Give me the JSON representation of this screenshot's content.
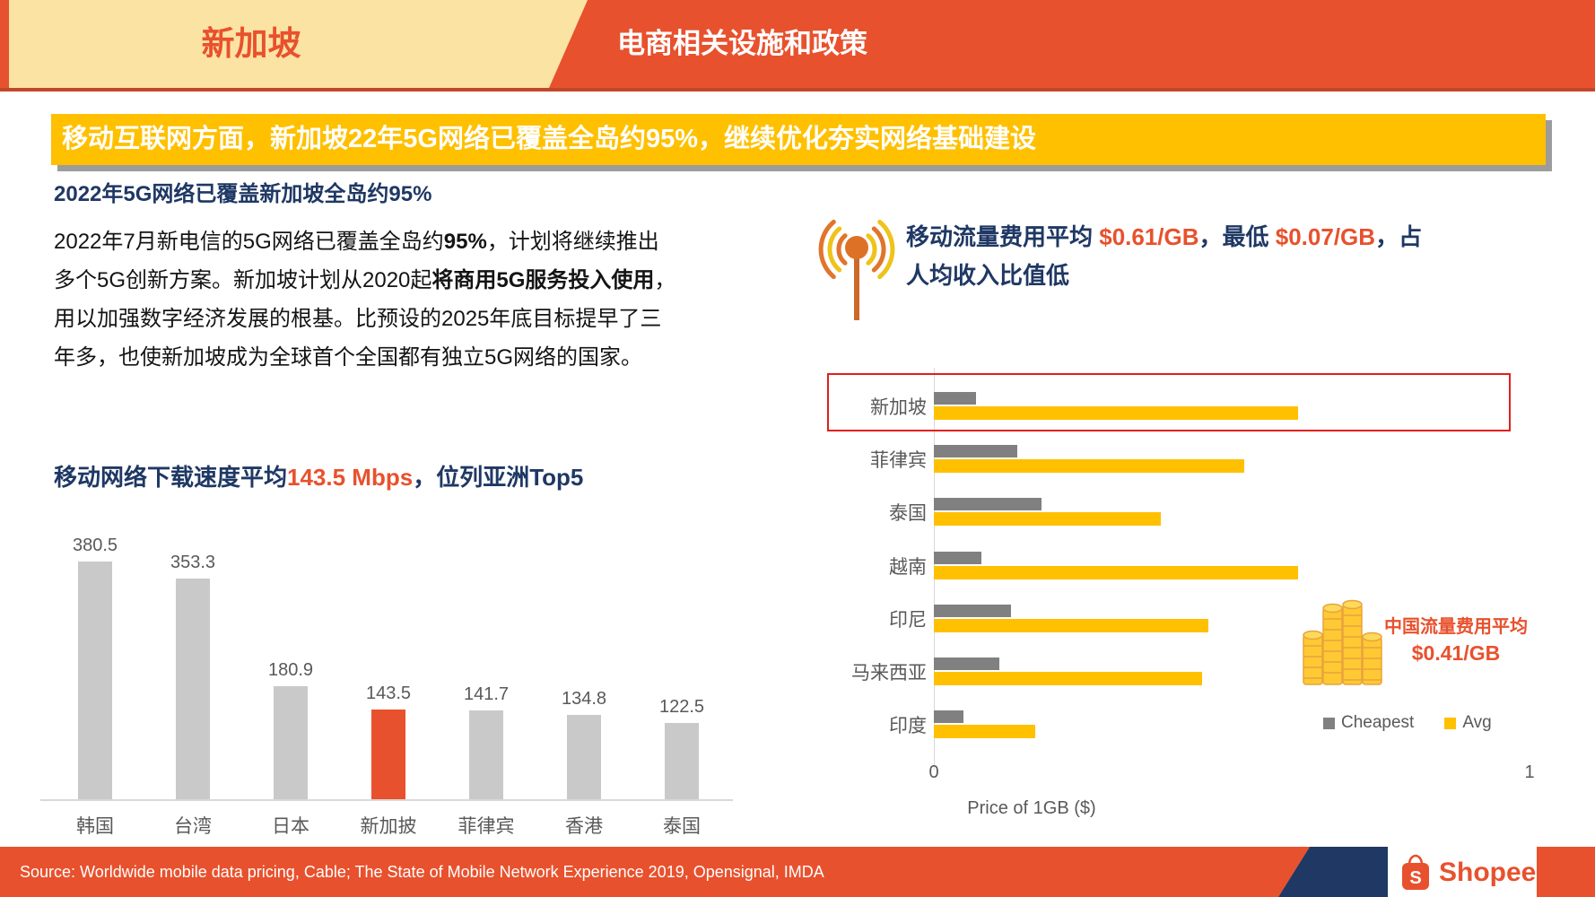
{
  "header": {
    "region_label": "新加坡",
    "page_title": "电商相关设施和政策"
  },
  "banner": {
    "text": "移动互联网方面，新加坡22年5G网络已覆盖全岛约95%，继续优化夯实网络基础建设"
  },
  "left": {
    "section_heading": "2022年5G网络已覆盖新加坡全岛约95%",
    "paragraph": [
      {
        "t": "2022年7月新电信的5G网络已覆盖全岛约"
      },
      {
        "t": "95%",
        "b": true
      },
      {
        "t": "，计划将继续推出多个5G创新方案。新加坡计划从2020起"
      },
      {
        "t": "将商用5G服务投入使用",
        "b": true
      },
      {
        "t": "，用以加强数字经济发展的根基。比预设的2025年底目标提早了三年多，也使新加坡成为全球首个全国都有独立5G网络的国家。"
      }
    ],
    "chart_heading": [
      {
        "t": "移动网络下载速度平均",
        "cls": "navy"
      },
      {
        "t": "143.5 Mbps",
        "cls": "accent"
      },
      {
        "t": "，位列亚洲Top5",
        "cls": "navy"
      }
    ]
  },
  "right": {
    "heading_line1": [
      {
        "t": "移动流量费用平均 ",
        "cls": "navy"
      },
      {
        "t": "$0.61/GB",
        "cls": "accent"
      },
      {
        "t": "，最低 ",
        "cls": "navy"
      },
      {
        "t": "$0.07/GB",
        "cls": "accent"
      },
      {
        "t": "，占",
        "cls": "navy"
      }
    ],
    "heading_line2": [
      {
        "t": "人均收入比值低",
        "cls": "navy"
      }
    ]
  },
  "chart_data": [
    {
      "type": "bar",
      "title": "移动网络下载速度平均143.5 Mbps，位列亚洲Top5",
      "categories": [
        "韩国",
        "台湾",
        "日本",
        "新加披",
        "菲律宾",
        "香港",
        "泰国"
      ],
      "values": [
        380.5,
        353.3,
        180.9,
        143.5,
        141.7,
        134.8,
        122.5
      ],
      "unit": "Mbps",
      "ylim": [
        0,
        400
      ],
      "highlight_index": 3,
      "bar_color": "#C9C9C9",
      "highlight_color": "#E8512D",
      "value_label_color": "#595959"
    },
    {
      "type": "bar",
      "orientation": "horizontal",
      "categories": [
        "新加坡",
        "菲律宾",
        "泰国",
        "越南",
        "印尼",
        "马来西亚",
        "印度"
      ],
      "series": [
        {
          "name": "Cheapest",
          "color": "#808080",
          "values": [
            0.07,
            0.14,
            0.18,
            0.08,
            0.13,
            0.11,
            0.05
          ]
        },
        {
          "name": "Avg",
          "color": "#FFC000",
          "values": [
            0.61,
            0.52,
            0.38,
            0.61,
            0.46,
            0.45,
            0.17
          ]
        }
      ],
      "xlabel": "Price of 1GB ($)",
      "xlim": [
        0,
        1
      ],
      "xticks": [
        "0",
        "1"
      ],
      "highlight_category": "新加坡",
      "highlight_box_color": "#E0201C",
      "legend_position": "bottom-right",
      "annotation": {
        "line1": "中国流量费用平均",
        "line2": "$0.41/GB"
      }
    }
  ],
  "footer": {
    "source": "Source: Worldwide mobile data pricing, Cable; The State of Mobile Network Experience 2019, Opensignal, IMDA",
    "brand": "Shopee"
  }
}
